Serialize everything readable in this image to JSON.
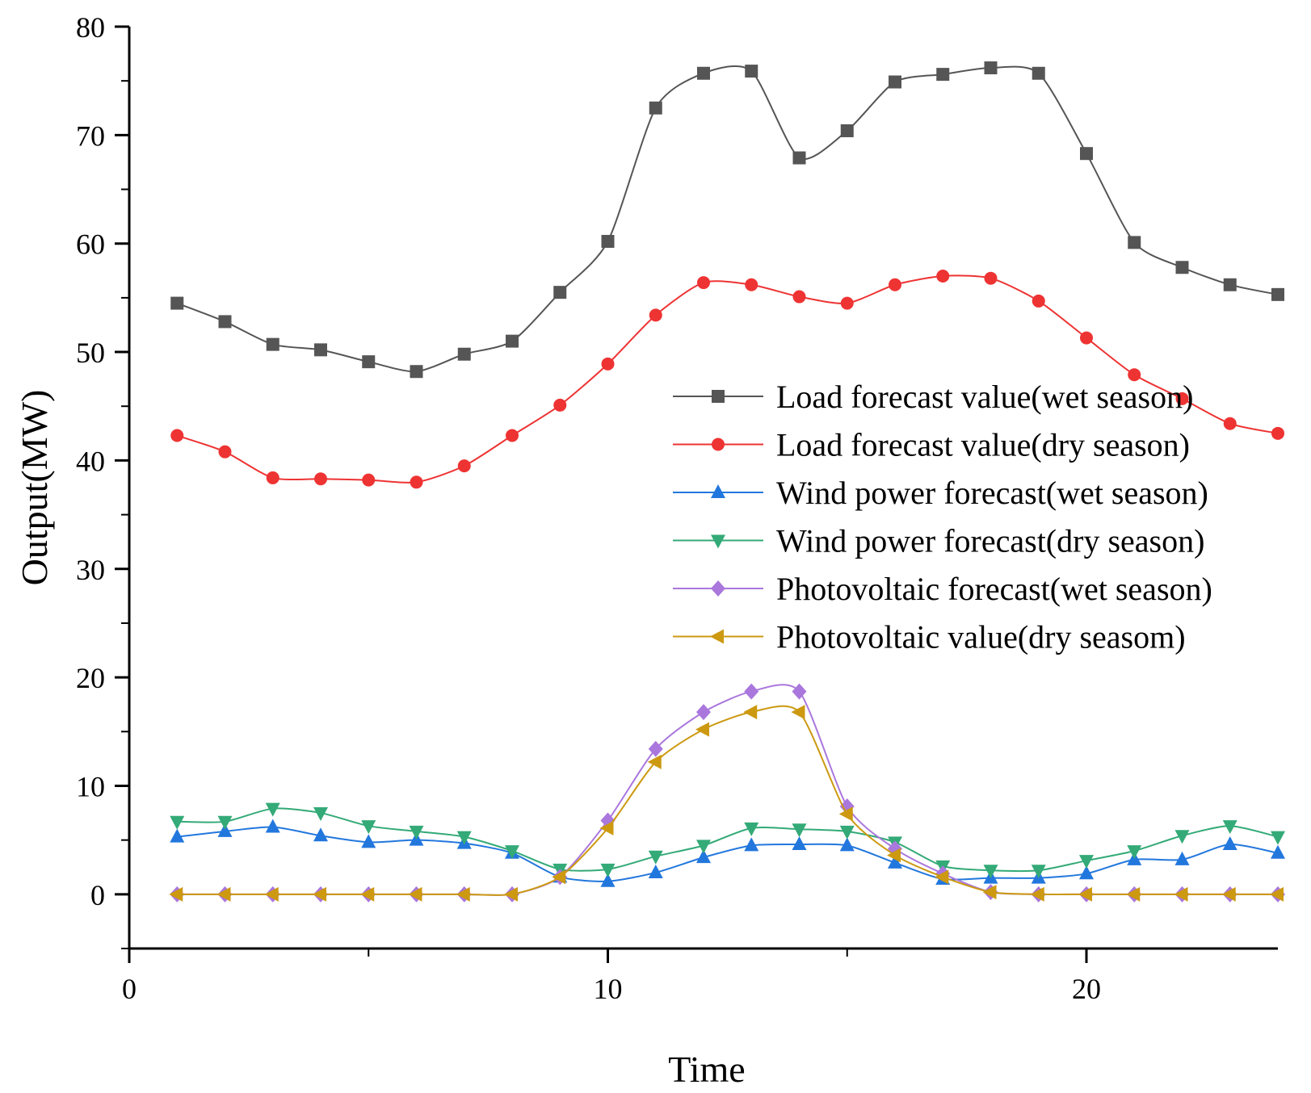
{
  "chart_data": {
    "type": "line",
    "title": "",
    "xlabel": "Time",
    "ylabel": "Output(MW)",
    "xlim": [
      0,
      24
    ],
    "ylim": [
      -5,
      80
    ],
    "xticks": [
      0,
      10,
      20
    ],
    "yticks": [
      0,
      10,
      20,
      30,
      40,
      50,
      60,
      70,
      80
    ],
    "grid": false,
    "legend_position": "center-right",
    "x": [
      1,
      2,
      3,
      4,
      5,
      6,
      7,
      8,
      9,
      10,
      11,
      12,
      13,
      14,
      15,
      16,
      17,
      18,
      19,
      20,
      21,
      22,
      23,
      24
    ],
    "series": [
      {
        "name": "Load forecast value(wet season)",
        "color": "#555555",
        "marker": "square",
        "values": [
          54.5,
          52.8,
          50.7,
          50.2,
          49.1,
          48.2,
          49.8,
          51.0,
          55.5,
          60.2,
          72.5,
          75.7,
          75.9,
          67.9,
          70.4,
          74.9,
          75.6,
          76.2,
          75.7,
          68.3,
          60.1,
          57.8,
          56.2,
          55.3
        ]
      },
      {
        "name": "Load forecast value(dry season)",
        "color": "#ee3333",
        "marker": "circle",
        "values": [
          42.3,
          40.8,
          38.4,
          38.3,
          38.2,
          38.0,
          39.5,
          42.3,
          45.1,
          48.9,
          53.4,
          56.4,
          56.2,
          55.1,
          54.5,
          56.2,
          57.0,
          56.8,
          54.7,
          51.3,
          47.9,
          45.7,
          43.4,
          42.5
        ]
      },
      {
        "name": "Wind power forecast(wet season)",
        "color": "#2277dd",
        "marker": "triangle-up",
        "values": [
          5.3,
          5.8,
          6.2,
          5.4,
          4.8,
          5.0,
          4.7,
          3.8,
          1.6,
          1.2,
          2.0,
          3.4,
          4.5,
          4.6,
          4.5,
          2.9,
          1.4,
          1.5,
          1.5,
          1.9,
          3.2,
          3.2,
          4.6,
          3.8
        ]
      },
      {
        "name": "Wind power forecast(dry season)",
        "color": "#33aa77",
        "marker": "triangle-down",
        "values": [
          6.7,
          6.7,
          7.9,
          7.5,
          6.3,
          5.8,
          5.3,
          4.0,
          2.3,
          2.3,
          3.5,
          4.5,
          6.1,
          6.0,
          5.8,
          4.8,
          2.6,
          2.2,
          2.2,
          3.1,
          4.0,
          5.4,
          6.3,
          5.3
        ]
      },
      {
        "name": "Photovoltaic forecast(wet season)",
        "color": "#aa77dd",
        "marker": "diamond",
        "values": [
          0,
          0,
          0,
          0,
          0,
          0,
          0,
          0,
          1.6,
          6.8,
          13.4,
          16.8,
          18.7,
          18.7,
          8.1,
          4.2,
          1.9,
          0.2,
          0,
          0,
          0,
          0,
          0,
          0
        ]
      },
      {
        "name": "Photovoltaic value(dry seasom)",
        "color": "#cc9911",
        "marker": "triangle-left",
        "values": [
          0,
          0,
          0,
          0,
          0,
          0,
          0,
          0,
          1.6,
          6.1,
          12.2,
          15.2,
          16.8,
          16.8,
          7.4,
          3.6,
          1.6,
          0.2,
          0,
          0,
          0,
          0,
          0,
          0
        ]
      }
    ]
  }
}
